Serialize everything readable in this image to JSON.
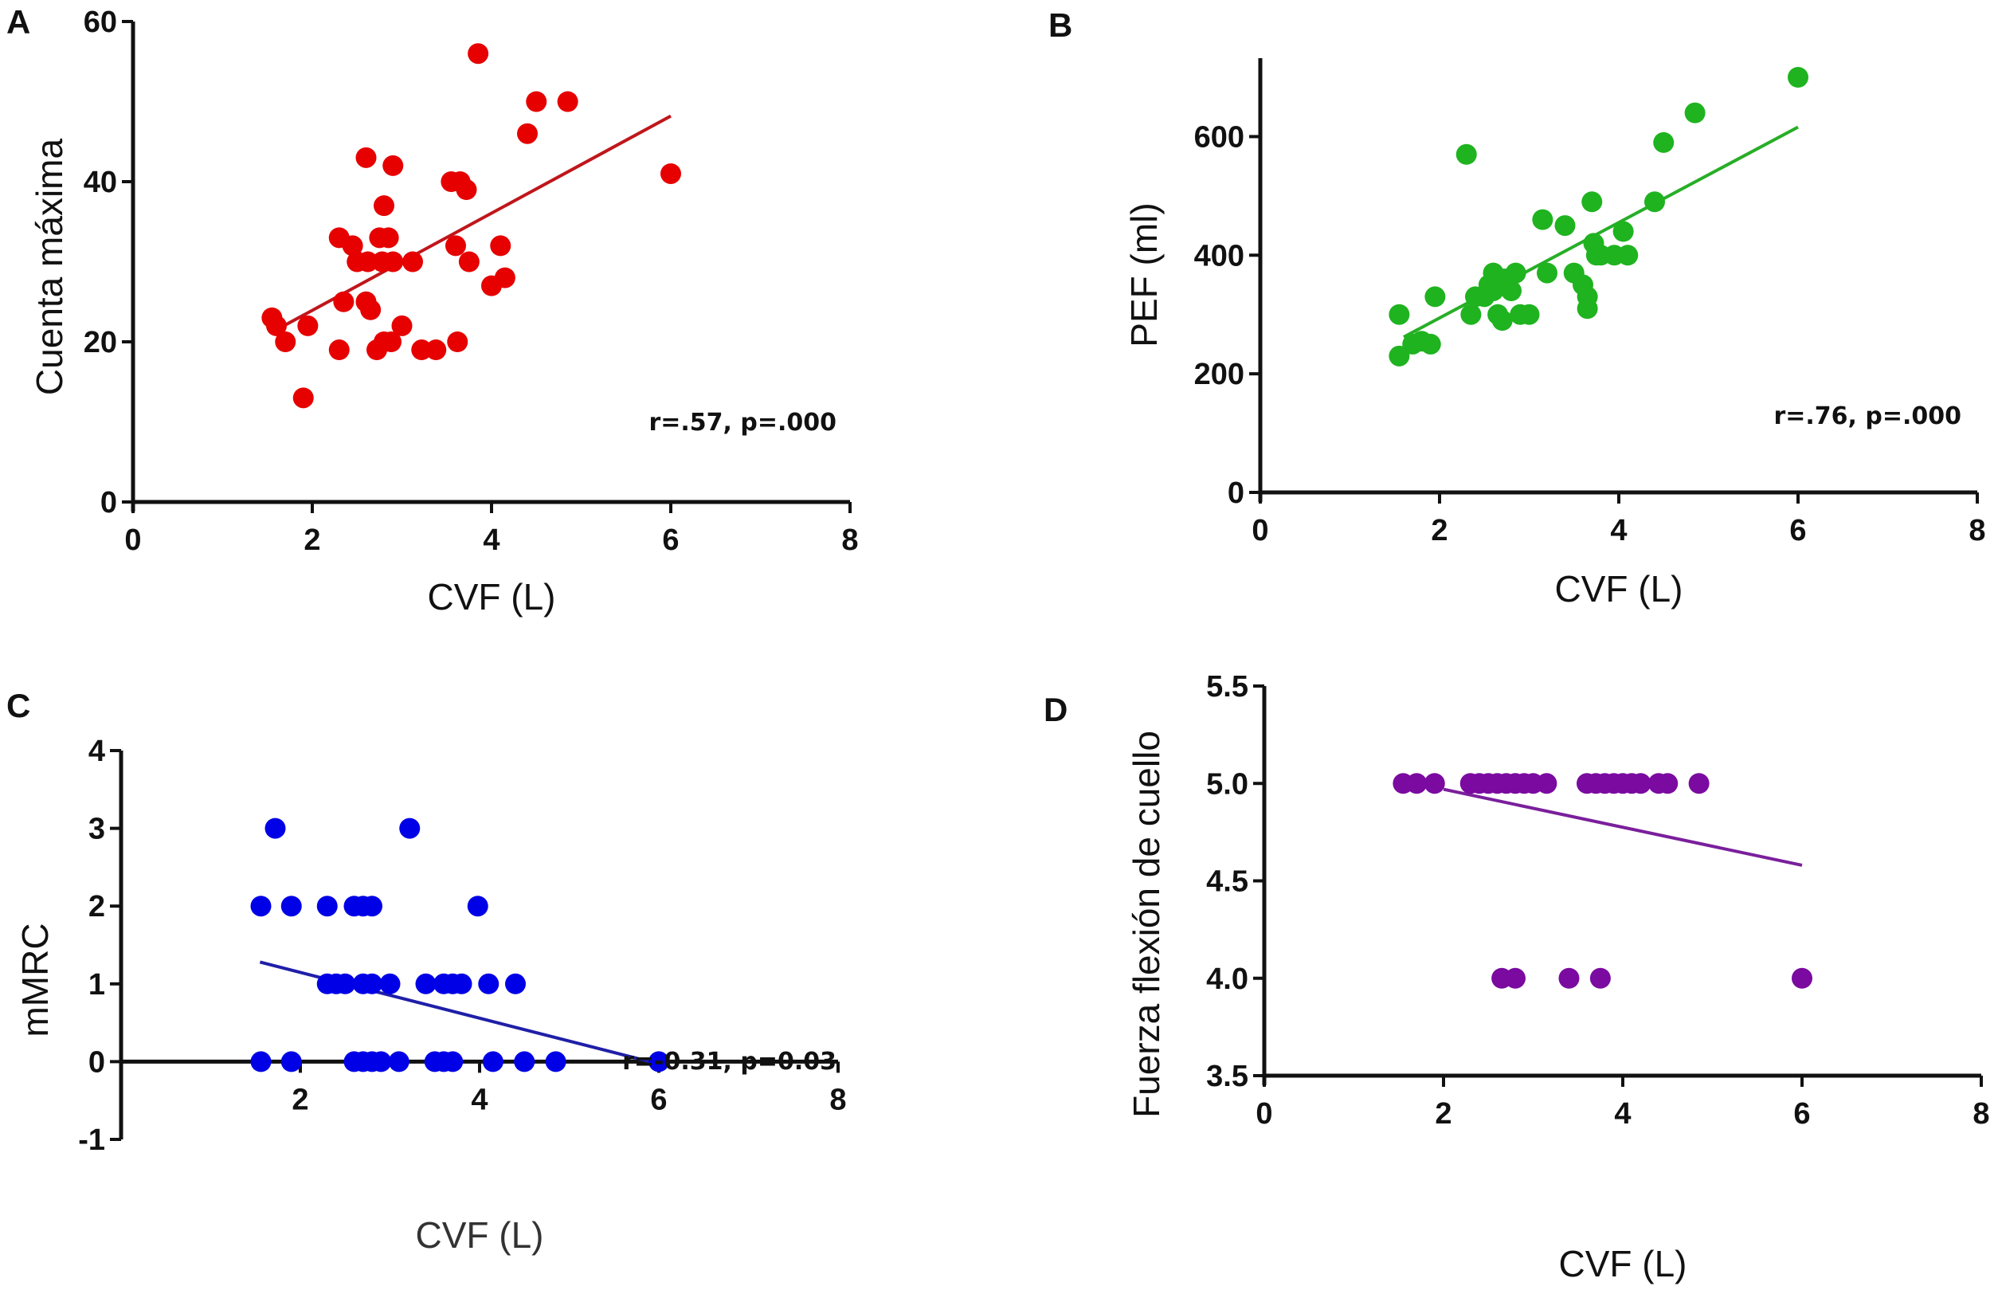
{
  "chart_data": [
    {
      "id": "A",
      "type": "scatter",
      "panel_label": "A",
      "title": "",
      "xlabel": "CVF (L)",
      "ylabel": "Cuenta máxima",
      "xlim": [
        0,
        8
      ],
      "ylim": [
        0,
        60
      ],
      "xticks": [
        0,
        2,
        4,
        6,
        8
      ],
      "yticks": [
        0,
        20,
        40,
        60
      ],
      "xtick_labels": [
        "0",
        "2",
        "4",
        "6",
        "8"
      ],
      "ytick_labels": [
        "0",
        "20",
        "40",
        "60"
      ],
      "color": "#e60000",
      "trend_color": "#c0161b",
      "annotation": "r=.57, p=.000",
      "annotation_position": "bottom-right",
      "grid": false,
      "points": [
        [
          1.55,
          23
        ],
        [
          1.6,
          22
        ],
        [
          1.7,
          20
        ],
        [
          1.9,
          13
        ],
        [
          1.95,
          22
        ],
        [
          2.3,
          33
        ],
        [
          2.3,
          19
        ],
        [
          2.35,
          25
        ],
        [
          2.45,
          32
        ],
        [
          2.5,
          30
        ],
        [
          2.6,
          43
        ],
        [
          2.6,
          25
        ],
        [
          2.65,
          24
        ],
        [
          2.62,
          30
        ],
        [
          2.72,
          19
        ],
        [
          2.75,
          33
        ],
        [
          2.78,
          30
        ],
        [
          2.8,
          37
        ],
        [
          2.8,
          20
        ],
        [
          2.85,
          33
        ],
        [
          2.9,
          42
        ],
        [
          2.9,
          30
        ],
        [
          2.88,
          20
        ],
        [
          3.0,
          22
        ],
        [
          3.12,
          30
        ],
        [
          3.22,
          19
        ],
        [
          3.38,
          19
        ],
        [
          3.55,
          40
        ],
        [
          3.6,
          32
        ],
        [
          3.65,
          40
        ],
        [
          3.62,
          20
        ],
        [
          3.72,
          39
        ],
        [
          3.75,
          30
        ],
        [
          3.85,
          56
        ],
        [
          4.0,
          27
        ],
        [
          4.1,
          32
        ],
        [
          4.15,
          28
        ],
        [
          4.4,
          46
        ],
        [
          4.5,
          50
        ],
        [
          4.85,
          50
        ],
        [
          6.0,
          41
        ]
      ],
      "trendline": [
        [
          1.6,
          21.5
        ],
        [
          6.0,
          48.2
        ]
      ]
    },
    {
      "id": "B",
      "type": "scatter",
      "panel_label": "B",
      "title": "",
      "xlabel": "CVF (L)",
      "ylabel": "PEF (ml)",
      "xlim": [
        0,
        8
      ],
      "ylim": [
        0,
        700
      ],
      "xticks": [
        0,
        2,
        4,
        6,
        8
      ],
      "yticks": [
        0,
        200,
        400,
        600
      ],
      "xtick_labels": [
        "0",
        "2",
        "4",
        "6",
        "8"
      ],
      "ytick_labels": [
        "0",
        "200",
        "400",
        "600"
      ],
      "color": "#1fb31f",
      "trend_color": "#27ae27",
      "annotation": "r=.76, p=.000",
      "annotation_position": "bottom-right",
      "grid": false,
      "points": [
        [
          1.55,
          230
        ],
        [
          1.55,
          300
        ],
        [
          1.7,
          250
        ],
        [
          1.8,
          255
        ],
        [
          1.9,
          250
        ],
        [
          1.95,
          330
        ],
        [
          2.3,
          570
        ],
        [
          2.35,
          300
        ],
        [
          2.4,
          330
        ],
        [
          2.5,
          330
        ],
        [
          2.55,
          350
        ],
        [
          2.6,
          370
        ],
        [
          2.6,
          340
        ],
        [
          2.65,
          300
        ],
        [
          2.7,
          290
        ],
        [
          2.72,
          360
        ],
        [
          2.8,
          340
        ],
        [
          2.85,
          370
        ],
        [
          2.9,
          300
        ],
        [
          3.0,
          300
        ],
        [
          3.15,
          460
        ],
        [
          3.2,
          370
        ],
        [
          3.4,
          450
        ],
        [
          3.5,
          370
        ],
        [
          3.6,
          350
        ],
        [
          3.65,
          330
        ],
        [
          3.65,
          310
        ],
        [
          3.7,
          490
        ],
        [
          3.72,
          420
        ],
        [
          3.75,
          400
        ],
        [
          3.8,
          400
        ],
        [
          3.95,
          400
        ],
        [
          4.05,
          440
        ],
        [
          4.1,
          400
        ],
        [
          4.4,
          490
        ],
        [
          4.5,
          590
        ],
        [
          4.85,
          640
        ],
        [
          6.0,
          700
        ]
      ],
      "trendline": [
        [
          1.6,
          262
        ],
        [
          6.0,
          616
        ]
      ]
    },
    {
      "id": "C",
      "type": "scatter",
      "panel_label": "C",
      "title": "",
      "xlabel": "CVF (L)",
      "ylabel": "mMRC",
      "xlim": [
        0,
        8
      ],
      "ylim": [
        -1,
        4
      ],
      "xticks": [
        2,
        4,
        6,
        8
      ],
      "yticks": [
        -1,
        0,
        1,
        2,
        3,
        4
      ],
      "xtick_labels": [
        "2",
        "4",
        "6",
        "8"
      ],
      "ytick_labels": [
        "-1",
        "0",
        "1",
        "2",
        "3",
        "4"
      ],
      "color": "#0000e6",
      "trend_color": "#1f1fa8",
      "annotation": "r=-0.31, p=0.03",
      "annotation_position": "right",
      "grid": false,
      "points": [
        [
          1.72,
          3
        ],
        [
          3.22,
          3
        ],
        [
          1.56,
          2
        ],
        [
          1.9,
          2
        ],
        [
          2.3,
          2
        ],
        [
          2.6,
          2
        ],
        [
          2.7,
          2
        ],
        [
          2.8,
          2
        ],
        [
          3.98,
          2
        ],
        [
          2.3,
          1
        ],
        [
          2.4,
          1
        ],
        [
          2.5,
          1
        ],
        [
          2.7,
          1
        ],
        [
          2.8,
          1
        ],
        [
          3.0,
          1
        ],
        [
          3.4,
          1
        ],
        [
          3.6,
          1
        ],
        [
          3.7,
          1
        ],
        [
          3.8,
          1
        ],
        [
          4.1,
          1
        ],
        [
          4.4,
          1
        ],
        [
          1.56,
          0
        ],
        [
          1.9,
          0
        ],
        [
          2.6,
          0
        ],
        [
          2.7,
          0
        ],
        [
          2.8,
          0
        ],
        [
          2.9,
          0
        ],
        [
          3.1,
          0
        ],
        [
          3.5,
          0
        ],
        [
          3.6,
          0
        ],
        [
          3.7,
          0
        ],
        [
          4.15,
          0
        ],
        [
          4.5,
          0
        ],
        [
          4.85,
          0
        ],
        [
          6.0,
          0
        ]
      ],
      "trendline": [
        [
          1.55,
          1.28
        ],
        [
          5.9,
          0.0
        ]
      ]
    },
    {
      "id": "D",
      "type": "scatter",
      "panel_label": "D",
      "title": "",
      "xlabel": "CVF (L)",
      "ylabel": "Fuerza flexión de cuello",
      "xlim": [
        0,
        8
      ],
      "ylim": [
        3.5,
        5.5
      ],
      "xticks": [
        0,
        2,
        4,
        6,
        8
      ],
      "yticks": [
        3.5,
        4.0,
        4.5,
        5.0,
        5.5
      ],
      "xtick_labels": [
        "0",
        "2",
        "4",
        "6",
        "8"
      ],
      "ytick_labels": [
        "3.5",
        "4.0",
        "4.5",
        "5.0",
        "5.5"
      ],
      "color": "#7a0aa0",
      "trend_color": "#7a1f9c",
      "annotation": "",
      "grid": false,
      "points": [
        [
          1.55,
          5
        ],
        [
          1.7,
          5
        ],
        [
          1.9,
          5
        ],
        [
          2.3,
          5
        ],
        [
          2.4,
          5
        ],
        [
          2.5,
          5
        ],
        [
          2.6,
          5
        ],
        [
          2.7,
          5
        ],
        [
          2.8,
          5
        ],
        [
          2.9,
          5
        ],
        [
          3.0,
          5
        ],
        [
          3.15,
          5
        ],
        [
          3.6,
          5
        ],
        [
          3.7,
          5
        ],
        [
          3.8,
          5
        ],
        [
          3.9,
          5
        ],
        [
          4.0,
          5
        ],
        [
          4.1,
          5
        ],
        [
          4.2,
          5
        ],
        [
          4.4,
          5
        ],
        [
          4.5,
          5
        ],
        [
          4.85,
          5
        ],
        [
          2.65,
          4
        ],
        [
          2.8,
          4
        ],
        [
          3.4,
          4
        ],
        [
          3.75,
          4
        ],
        [
          6.0,
          4
        ]
      ],
      "trendline": [
        [
          2.0,
          4.97
        ],
        [
          6.0,
          4.58
        ]
      ]
    }
  ]
}
